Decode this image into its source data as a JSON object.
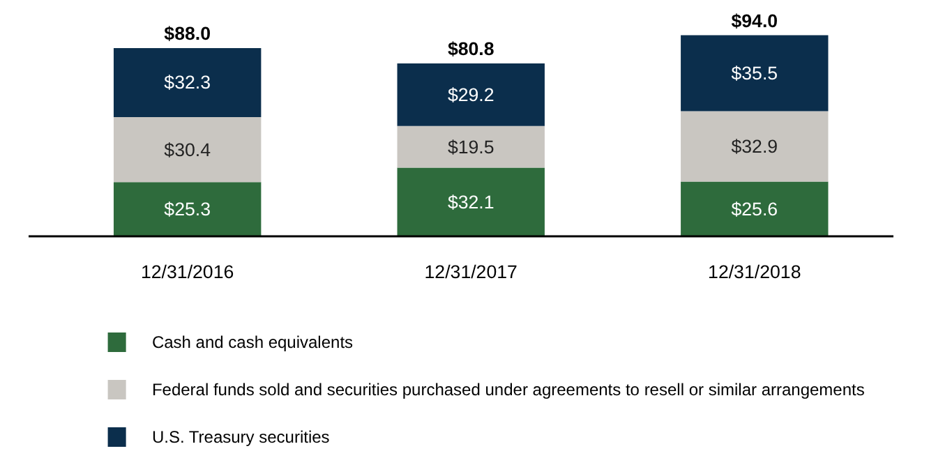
{
  "chart_data": {
    "type": "bar",
    "stacked": true,
    "categories": [
      "12/31/2016",
      "12/31/2017",
      "12/31/2018"
    ],
    "series": [
      {
        "name": "Cash and cash equivalents",
        "color": "#2e6b3c",
        "values": [
          25.3,
          32.1,
          25.6
        ],
        "value_labels": [
          "$25.3",
          "$32.1",
          "$25.6"
        ]
      },
      {
        "name": "Federal funds sold and securities purchased under agreements to resell or similar arrangements",
        "color": "#c9c6c1",
        "values": [
          30.4,
          19.5,
          32.9
        ],
        "value_labels": [
          "$30.4",
          "$19.5",
          "$32.9"
        ]
      },
      {
        "name": "U.S. Treasury securities",
        "color": "#0b2e4c",
        "values": [
          32.3,
          29.2,
          35.5
        ],
        "value_labels": [
          "$32.3",
          "$29.2",
          "$35.5"
        ]
      }
    ],
    "totals": [
      "$88.0",
      "$80.8",
      "$94.0"
    ],
    "tick_labels": "x",
    "grid": false,
    "legend": "bottom"
  }
}
